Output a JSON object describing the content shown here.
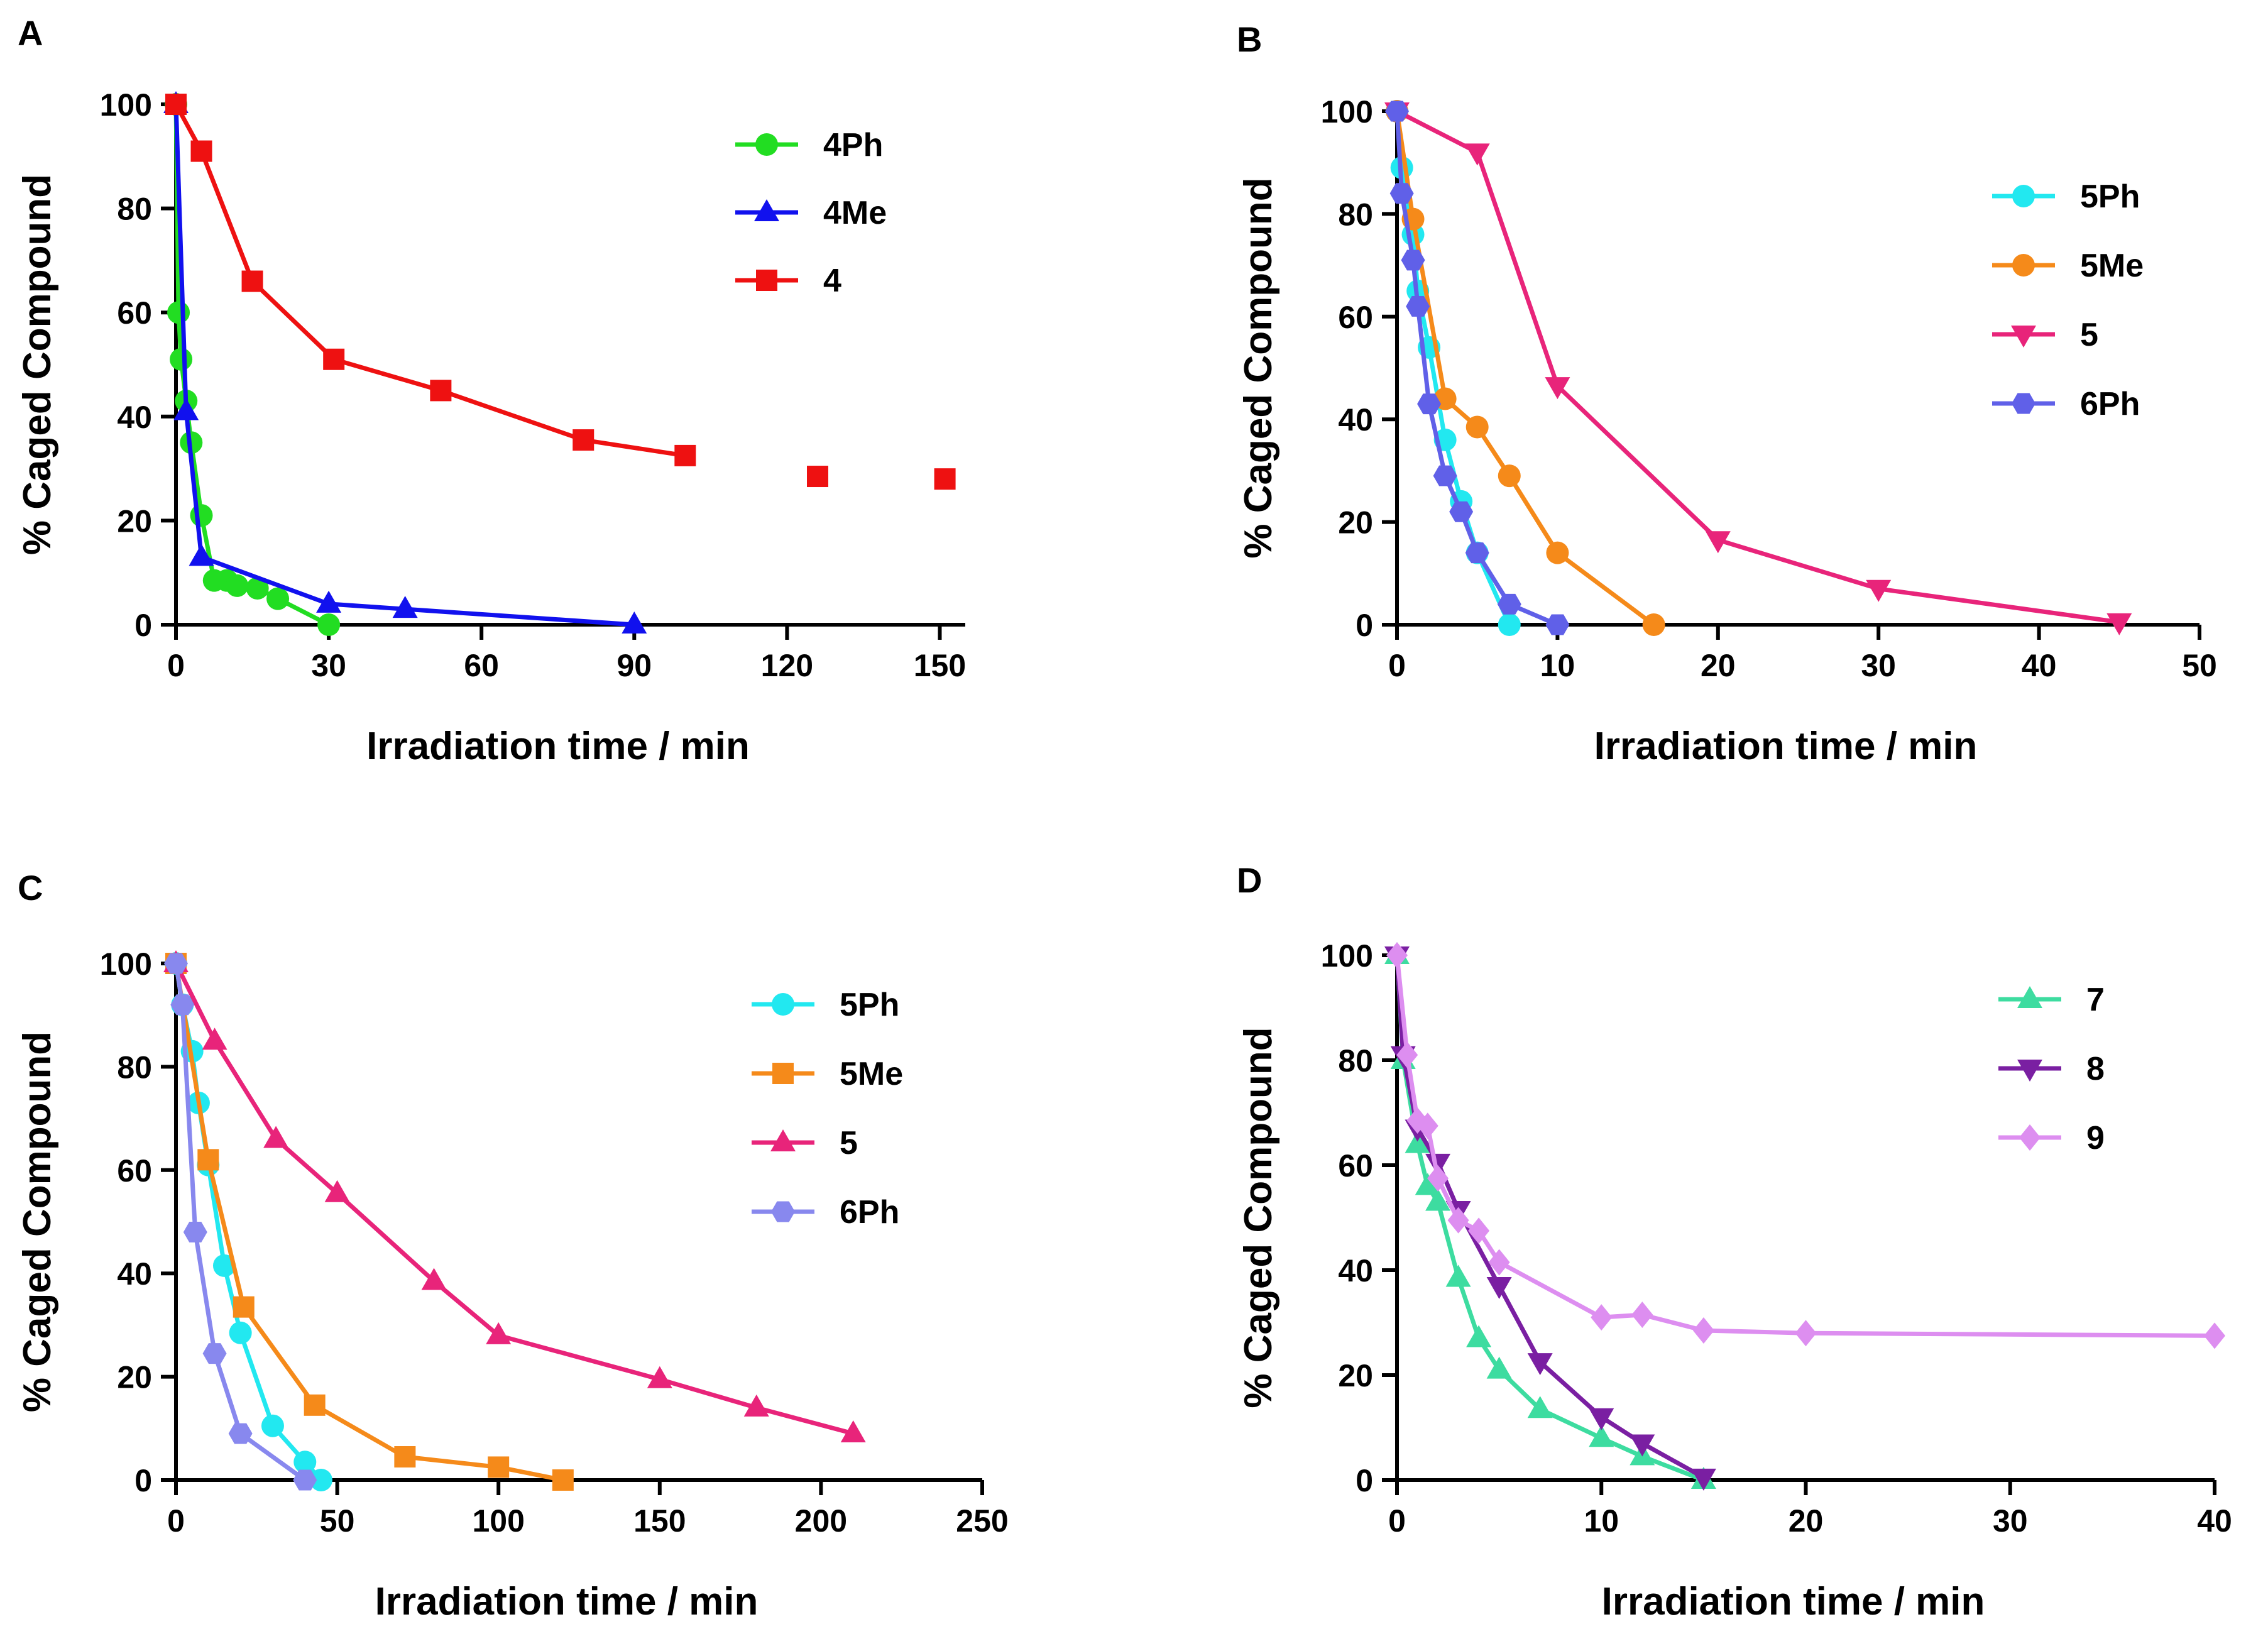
{
  "chart_data": [
    {
      "type": "line",
      "panel": "A",
      "xlabel": "Irradiation time / min",
      "ylabel": "% Caged Compound",
      "xlim": [
        0,
        155
      ],
      "ylim": [
        0,
        100
      ],
      "xticks": [
        0,
        30,
        60,
        90,
        120,
        150
      ],
      "yticks": [
        0,
        20,
        40,
        60,
        80,
        100
      ],
      "legend_position": "top-right",
      "series": [
        {
          "name": "4Ph",
          "color": "#22dd22",
          "marker": "circle",
          "x": [
            0,
            0.5,
            1,
            2,
            3,
            5,
            7.5,
            10,
            12,
            16,
            20,
            30
          ],
          "y": [
            100,
            60,
            51,
            43,
            35,
            21,
            8.5,
            8.5,
            7.5,
            7,
            5,
            0
          ]
        },
        {
          "name": "4Me",
          "color": "#1111ee",
          "marker": "triangle-up",
          "x": [
            0,
            2,
            5,
            30,
            45,
            90
          ],
          "y": [
            100,
            41,
            13,
            4,
            3,
            0
          ]
        },
        {
          "name": "4",
          "color": "#ee1111",
          "marker": "square",
          "x": [
            0,
            5,
            15,
            31,
            52,
            80,
            100
          ],
          "y": [
            100,
            91,
            66,
            51,
            45,
            35.5,
            32.5
          ],
          "extra_x": [
            126,
            151
          ],
          "extra_y": [
            28.5,
            28
          ]
        }
      ]
    },
    {
      "type": "line",
      "panel": "B",
      "xlabel": "Irradiation time / min",
      "ylabel": "% Caged Compound",
      "xlim": [
        0,
        50
      ],
      "ylim": [
        0,
        100
      ],
      "xticks": [
        0,
        10,
        20,
        30,
        40,
        50
      ],
      "yticks": [
        0,
        20,
        40,
        60,
        80,
        100
      ],
      "legend_position": "top-right",
      "series": [
        {
          "name": "5Ph",
          "color": "#22e8f0",
          "marker": "circle",
          "x": [
            0,
            0.3,
            1,
            1.3,
            2,
            3,
            4,
            5,
            7
          ],
          "y": [
            100,
            89,
            76,
            65,
            54,
            36,
            24,
            14,
            0
          ]
        },
        {
          "name": "5Me",
          "color": "#f58a1a",
          "marker": "circle",
          "x": [
            0,
            1,
            3,
            5,
            7,
            10,
            16
          ],
          "y": [
            100,
            79,
            44,
            38.5,
            29,
            14,
            0
          ]
        },
        {
          "name": "5",
          "color": "#e8247a",
          "marker": "triangle-down",
          "x": [
            0,
            5,
            10,
            20,
            30,
            45
          ],
          "y": [
            100,
            92,
            46.5,
            16.5,
            7,
            0.5
          ]
        },
        {
          "name": "6Ph",
          "color": "#6060e8",
          "marker": "hexagon",
          "x": [
            0,
            0.3,
            1,
            1.3,
            2,
            3,
            4,
            5,
            7,
            10
          ],
          "y": [
            100,
            84,
            71,
            62,
            43,
            29,
            22,
            14,
            4,
            0
          ]
        }
      ]
    },
    {
      "type": "line",
      "panel": "C",
      "xlabel": "Irradiation time / min",
      "ylabel": "% Caged Compound",
      "xlim": [
        0,
        250
      ],
      "ylim": [
        0,
        100
      ],
      "xticks": [
        0,
        50,
        100,
        150,
        200,
        250
      ],
      "yticks": [
        0,
        20,
        40,
        60,
        80,
        100
      ],
      "legend_position": "top-right",
      "series": [
        {
          "name": "5Ph",
          "color": "#22e8f0",
          "marker": "circle",
          "x": [
            0,
            2,
            5,
            7,
            10,
            15,
            20,
            30,
            40,
            45
          ],
          "y": [
            100,
            92,
            83,
            73,
            61,
            41.5,
            28.5,
            10.5,
            3.5,
            0
          ]
        },
        {
          "name": "5Me",
          "color": "#f58a1a",
          "marker": "square",
          "x": [
            0,
            10,
            21,
            43,
            71,
            100,
            120
          ],
          "y": [
            100,
            62,
            33.5,
            14.5,
            4.5,
            2.5,
            0
          ]
        },
        {
          "name": "5",
          "color": "#e8247a",
          "marker": "triangle-up",
          "x": [
            0,
            12,
            31,
            50,
            80,
            100,
            150,
            180,
            210
          ],
          "y": [
            100,
            85,
            66,
            55.5,
            38.5,
            28,
            19.5,
            14,
            9
          ]
        },
        {
          "name": "6Ph",
          "color": "#8888ee",
          "marker": "hexagon",
          "x": [
            0,
            2,
            6,
            12,
            20,
            40
          ],
          "y": [
            100,
            92,
            48,
            24.5,
            9,
            0
          ]
        }
      ]
    },
    {
      "type": "line",
      "panel": "D",
      "xlabel": "Irradiation time / min",
      "ylabel": "% Caged Compound",
      "xlim": [
        0,
        40
      ],
      "ylim": [
        0,
        100
      ],
      "xticks": [
        0,
        10,
        20,
        30,
        40
      ],
      "yticks": [
        0,
        20,
        40,
        60,
        80,
        100
      ],
      "legend_position": "top-right",
      "series": [
        {
          "name": "7",
          "color": "#3ddca0",
          "marker": "triangle-up",
          "x": [
            0,
            0.3,
            1,
            1.5,
            2,
            3,
            4,
            5,
            7,
            10,
            12,
            15
          ],
          "y": [
            100,
            80,
            64,
            56,
            53,
            38.5,
            27,
            21,
            13.5,
            8,
            4.5,
            0
          ]
        },
        {
          "name": "8",
          "color": "#7a1fa2",
          "marker": "triangle-down",
          "x": [
            0,
            0.3,
            1,
            2,
            3,
            5,
            7,
            10,
            12,
            15
          ],
          "y": [
            100,
            81,
            67,
            60.5,
            51.5,
            37,
            22.5,
            12,
            7,
            0.5
          ]
        },
        {
          "name": "9",
          "color": "#dd8ef0",
          "marker": "diamond",
          "x": [
            0,
            0.5,
            1,
            1.5,
            2,
            3,
            4,
            5,
            10,
            12,
            15,
            20,
            40
          ],
          "y": [
            100,
            81,
            68.5,
            67.5,
            57.5,
            49.5,
            47.5,
            41.5,
            31,
            31.5,
            28.5,
            28,
            27.5
          ]
        }
      ]
    }
  ]
}
